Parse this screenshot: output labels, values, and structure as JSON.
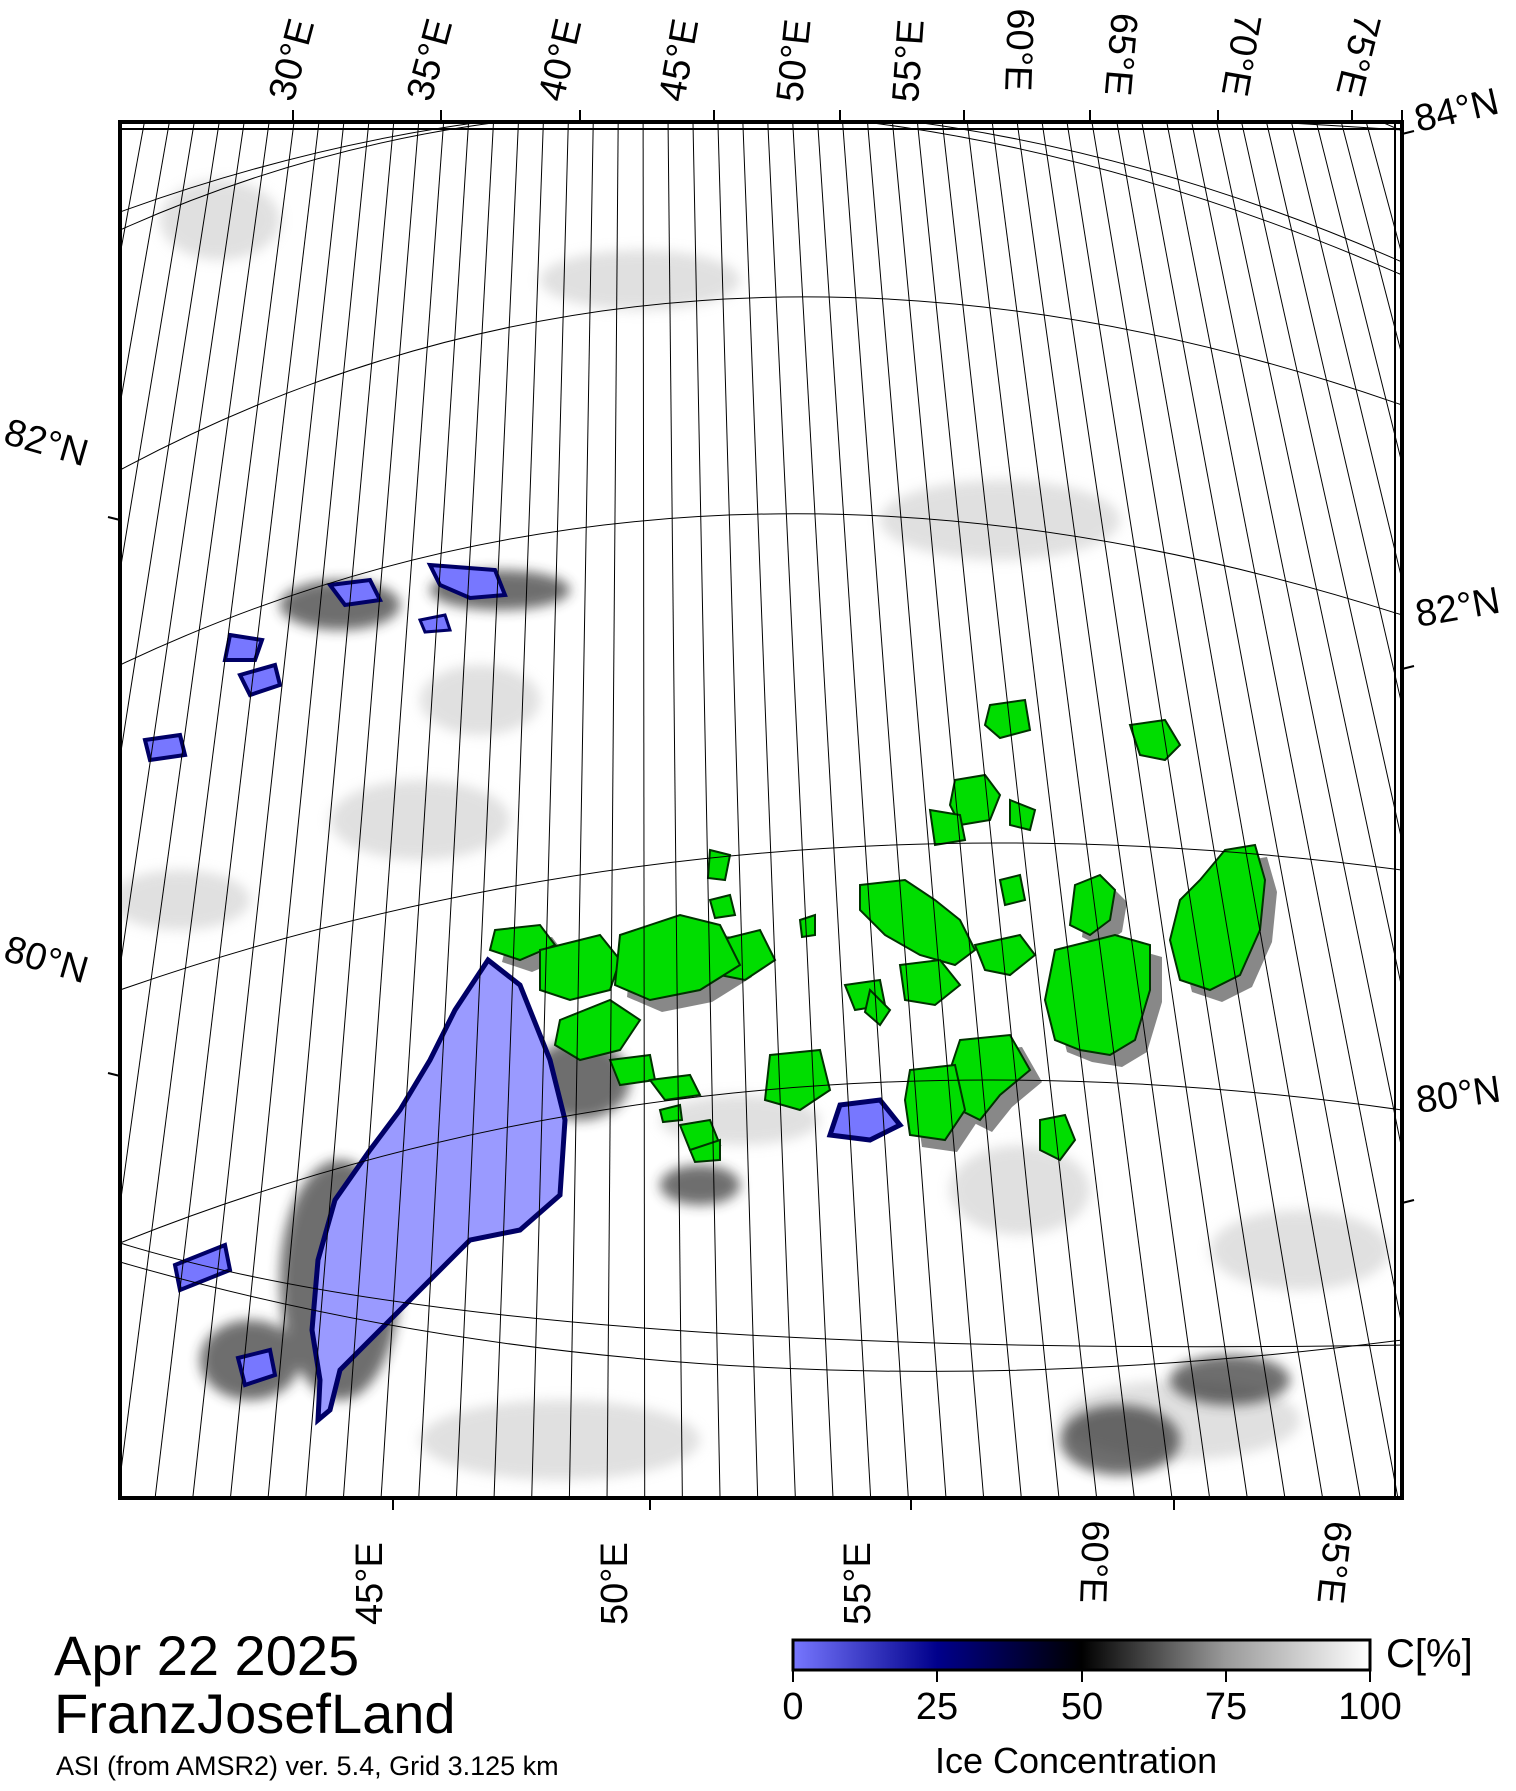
{
  "map": {
    "region": "FranzJosefLand",
    "top_lon_labels": [
      "30°E",
      "35°E",
      "40°E",
      "45°E",
      "50°E",
      "55°E",
      "60°E",
      "65°E",
      "70°E",
      "75°E"
    ],
    "bottom_lon_labels": [
      "45°E",
      "50°E",
      "55°E",
      "60°E",
      "65°E"
    ],
    "left_lat_labels": [
      "82°N",
      "80°N"
    ],
    "right_lat_labels": [
      "84°N",
      "82°N",
      "80°N"
    ],
    "colors": {
      "land": "#00dd00",
      "low_ice": "#8888ff",
      "mid_ice": "#000066",
      "high_ice": "#f2f2f2",
      "graticule": "#000000",
      "frame": "#000000"
    }
  },
  "footer": {
    "date": "Apr 22 2025",
    "region": "FranzJosefLand",
    "product": "ASI (from AMSR2) ver. 5.4,  Grid 3.125 km"
  },
  "colorbar": {
    "unit": "C[%]",
    "label": "Ice Concentration",
    "ticks": [
      "0",
      "25",
      "50",
      "75",
      "100"
    ],
    "min": 0,
    "max": 100,
    "stops": [
      "#7777ff",
      "#00008b",
      "#000000",
      "#9a9a9a",
      "#ffffff"
    ]
  }
}
